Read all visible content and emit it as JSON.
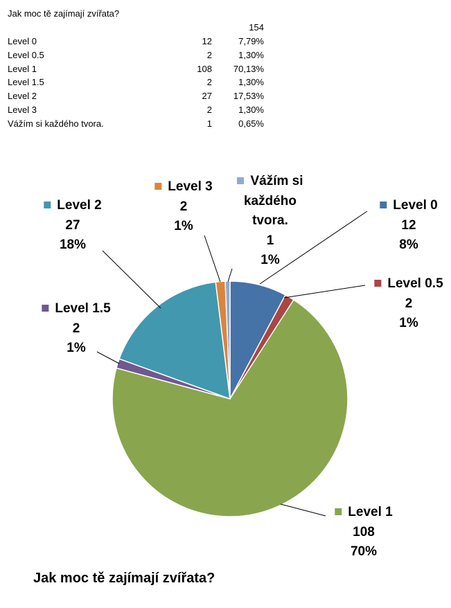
{
  "table": {
    "title": "Jak moc tě zajímají zvířata?",
    "total": "154",
    "rows": [
      {
        "label": "Level 0",
        "count": "12",
        "percent": "7,79%"
      },
      {
        "label": "Level 0.5",
        "count": "2",
        "percent": "1,30%"
      },
      {
        "label": "Level 1",
        "count": "108",
        "percent": "70,13%"
      },
      {
        "label": "Level 1.5",
        "count": "2",
        "percent": "1,30%"
      },
      {
        "label": "Level 2",
        "count": "27",
        "percent": "17,53%"
      },
      {
        "label": "Level 3",
        "count": "2",
        "percent": "1,30%"
      },
      {
        "label": "Vážím si každého tvora.",
        "count": "1",
        "percent": "0,65%"
      }
    ]
  },
  "chart_data": {
    "type": "pie",
    "title": "Jak moc tě zajímají zvířata?",
    "categories": [
      "Level 0",
      "Level 0.5",
      "Level 1",
      "Level 1.5",
      "Level 2",
      "Level 3",
      "Vážím si každého tvora."
    ],
    "values": [
      12,
      2,
      108,
      2,
      27,
      2,
      1
    ],
    "percent_labels": [
      "8%",
      "1%",
      "70%",
      "1%",
      "18%",
      "1%",
      "1%"
    ],
    "colors": [
      "#4572A7",
      "#AA4643",
      "#89A54E",
      "#71588F",
      "#4198AF",
      "#DB843D",
      "#93A9CF"
    ],
    "start": "12 o'clock, clockwise",
    "legend": "none (data labels with leader lines)"
  }
}
